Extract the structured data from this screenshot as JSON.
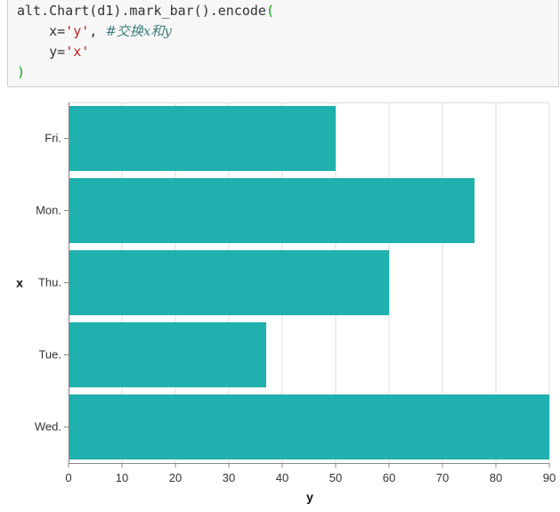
{
  "code": {
    "line1_text": "alt.Chart(d1).mark_bar().encode",
    "line1_paren": "(",
    "line2_prefix": "    x=",
    "line2_str": "'y'",
    "line2_sep": ", ",
    "line2_comment": "#交换x和y",
    "line3_prefix": "    y=",
    "line3_str": "'x'",
    "line4_paren": ")"
  },
  "chart_data": {
    "type": "bar",
    "orientation": "horizontal",
    "categories": [
      "Fri.",
      "Mon.",
      "Thu.",
      "Tue.",
      "Wed."
    ],
    "values": [
      50,
      76,
      60,
      37,
      90
    ],
    "xlabel": "y",
    "ylabel": "x",
    "xlim": [
      0,
      90
    ],
    "xticks": [
      0,
      10,
      20,
      30,
      40,
      50,
      60,
      70,
      80,
      90
    ],
    "grid": true,
    "bar_color": "#20b0ae",
    "grid_color": "#dddddd",
    "axis_color": "#888888"
  }
}
